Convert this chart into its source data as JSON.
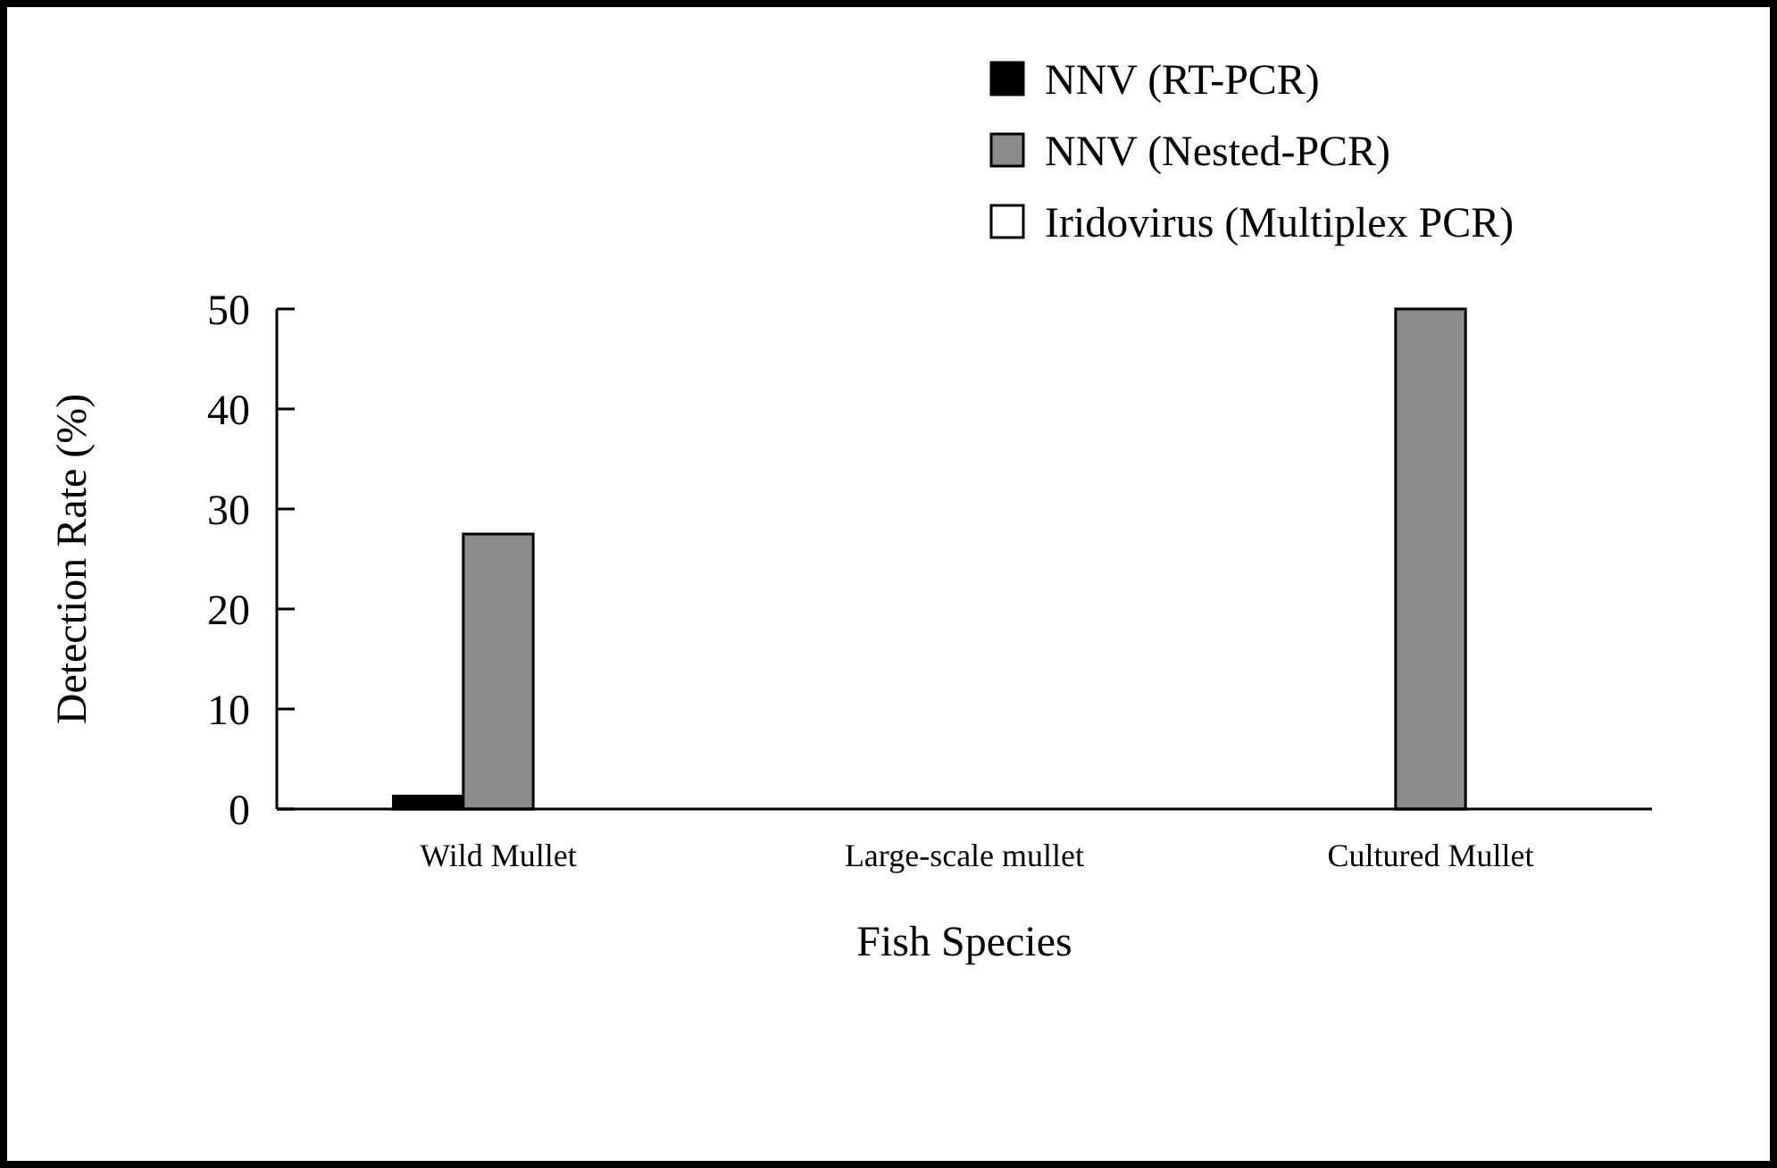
{
  "chart_data": {
    "type": "bar",
    "xlabel": "Fish Species",
    "ylabel": "Detection Rate (%)",
    "categories": [
      "Wild Mullet",
      "Large-scale mullet",
      "Cultured Mullet"
    ],
    "series": [
      {
        "name": "NNV (RT-PCR)",
        "color": "#000000",
        "values": [
          1.3,
          0,
          0
        ]
      },
      {
        "name": "NNV (Nested-PCR)",
        "color": "#8c8c8c",
        "values": [
          27.5,
          0,
          50
        ]
      },
      {
        "name": "Iridovirus (Multiplex PCR)",
        "color": "#ffffff",
        "values": [
          0,
          0,
          0
        ]
      }
    ],
    "ylim": [
      0,
      50
    ],
    "yticks": [
      0,
      10,
      20,
      30,
      40,
      50
    ],
    "legend": "top right"
  }
}
